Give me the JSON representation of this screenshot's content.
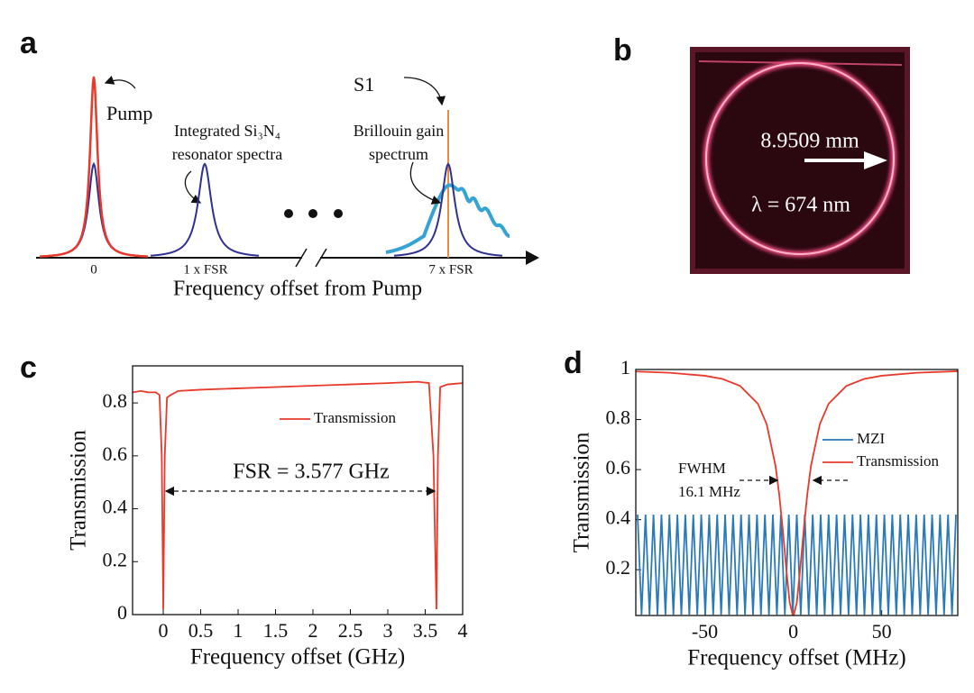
{
  "panel_labels": [
    "a",
    "b",
    "c",
    "d"
  ],
  "panel_a": {
    "pump": "Pump",
    "s1": "S1",
    "resonator_lines": [
      "Integrated Si₃N₄",
      "resonator spectra"
    ],
    "brillouin_lines": [
      "Brillouin gain",
      "spectrum"
    ],
    "ticks": [
      "0",
      "1 x FSR",
      "7 x FSR"
    ],
    "xlabel": "Frequency offset from Pump"
  },
  "panel_b": {
    "diameter": "8.9509 mm",
    "wavelength": "λ = 674 nm"
  },
  "chart_data": [
    {
      "type": "line",
      "xlabel": "Frequency offset (GHz)",
      "ylabel": "Transmission",
      "annotation_lines": [
        "FSR = 3.577 GHz"
      ],
      "series": [
        {
          "name": "Transmission",
          "color": "#e8392b",
          "x": [
            -0.41,
            -0.3,
            -0.2,
            -0.1,
            -0.05,
            -0.02,
            0,
            0.02,
            0.05,
            0.1,
            0.2,
            0.5,
            1,
            1.5,
            2,
            2.5,
            3,
            3.4,
            3.55,
            3.61,
            3.63,
            3.65,
            3.67,
            3.7,
            3.8,
            4
          ],
          "values": [
            0.84,
            0.845,
            0.84,
            0.84,
            0.83,
            0.6,
            0.02,
            0.6,
            0.82,
            0.83,
            0.845,
            0.85,
            0.855,
            0.86,
            0.865,
            0.87,
            0.875,
            0.88,
            0.875,
            0.6,
            0.3,
            0.02,
            0.6,
            0.86,
            0.87,
            0.875
          ]
        }
      ],
      "xlim": [
        -0.41,
        4
      ],
      "ylim": [
        0,
        0.94
      ],
      "xticks": [
        0,
        0.5,
        1,
        1.5,
        2,
        2.5,
        3,
        3.5,
        4
      ],
      "yticks": [
        0,
        0.2,
        0.4,
        0.6,
        0.8
      ]
    },
    {
      "type": "line",
      "xlabel": "Frequency offset (MHz)",
      "ylabel": "Transmission",
      "annotation_lines": [
        "FWHM",
        "16.1 MHz"
      ],
      "series": [
        {
          "name": "MZI",
          "color": "#2a7ab8",
          "x": [
            -88,
            -85.75,
            -83.5,
            -81.25,
            -79,
            -76.75,
            -74.5,
            -72.25,
            -70,
            -67.75,
            -65.5,
            -63.25,
            -61,
            -58.75,
            -56.5,
            -54.25,
            -52,
            -49.75,
            -47.5,
            -45.25,
            -43,
            -40.75,
            -38.5,
            -36.25,
            -34,
            -31.75,
            -29.5,
            -27.25,
            -25,
            -22.75,
            -20.5,
            -18.25,
            -16,
            -13.75,
            -11.5,
            -9.25,
            -7,
            -4.75,
            -2.5,
            -0.25,
            2,
            4.25,
            6.5,
            8.75,
            11,
            13.25,
            15.5,
            17.75,
            20,
            22.25,
            24.5,
            26.75,
            29,
            31.25,
            33.5,
            35.75,
            38,
            40.25,
            42.5,
            44.75,
            47,
            49.25,
            51.5,
            53.75,
            56,
            58.25,
            60.5,
            62.75,
            65,
            67.25,
            69.5,
            71.75,
            74,
            76.25,
            78.5,
            80.75,
            83,
            85.25,
            87.5,
            89.75,
            92
          ],
          "values": [
            0.42,
            0.02,
            0.42,
            0.02,
            0.42,
            0.02,
            0.42,
            0.02,
            0.42,
            0.02,
            0.42,
            0.02,
            0.42,
            0.02,
            0.42,
            0.02,
            0.42,
            0.02,
            0.42,
            0.02,
            0.42,
            0.02,
            0.42,
            0.02,
            0.42,
            0.02,
            0.42,
            0.02,
            0.42,
            0.02,
            0.42,
            0.02,
            0.42,
            0.02,
            0.42,
            0.02,
            0.42,
            0.02,
            0.42,
            0.02,
            0.42,
            0.02,
            0.42,
            0.02,
            0.42,
            0.02,
            0.42,
            0.02,
            0.42,
            0.02,
            0.42,
            0.02,
            0.42,
            0.02,
            0.42,
            0.02,
            0.42,
            0.02,
            0.42,
            0.02,
            0.42,
            0.02,
            0.42,
            0.02,
            0.42,
            0.02,
            0.42,
            0.02,
            0.42,
            0.02,
            0.42,
            0.02,
            0.42,
            0.02,
            0.42,
            0.02,
            0.42,
            0.02,
            0.42,
            0.02,
            0.42
          ]
        },
        {
          "name": "Transmission",
          "color": "#e8392b",
          "x": [
            -89,
            -70,
            -50,
            -40,
            -30,
            -20,
            -15,
            -10,
            -8,
            -6,
            -4,
            -2,
            0,
            2,
            4,
            6,
            8,
            10,
            15,
            20,
            30,
            40,
            50,
            70,
            93
          ],
          "values": [
            0.992,
            0.987,
            0.975,
            0.962,
            0.934,
            0.863,
            0.781,
            0.614,
            0.505,
            0.366,
            0.208,
            0.068,
            0.01,
            0.068,
            0.208,
            0.366,
            0.505,
            0.614,
            0.781,
            0.863,
            0.934,
            0.962,
            0.975,
            0.987,
            0.993
          ]
        }
      ],
      "xlim": [
        -89,
        93
      ],
      "ylim": [
        0.017,
        1
      ],
      "xticks": [
        -50,
        0,
        50
      ],
      "yticks": [
        0.2,
        0.4,
        0.6,
        0.8,
        1
      ]
    }
  ]
}
